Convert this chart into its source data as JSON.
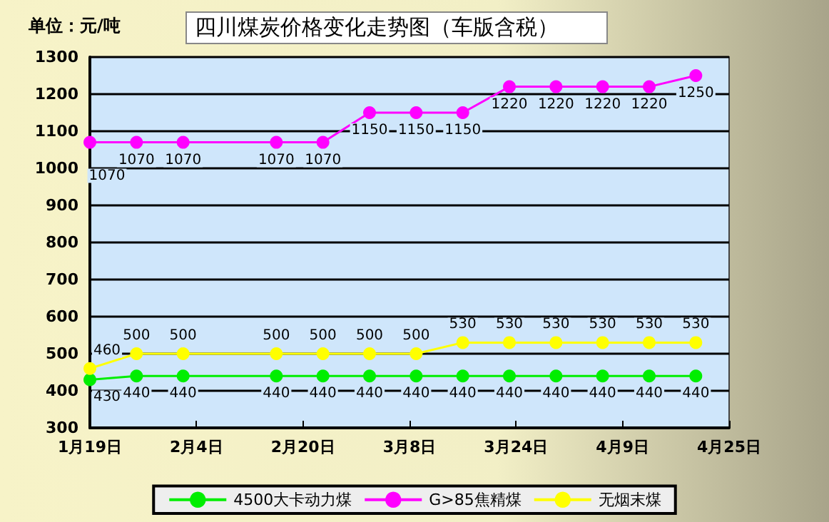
{
  "chart_data": {
    "type": "line",
    "title": "四川煤炭价格变化走势图（车版含税）",
    "ylabel": "单位：元/吨",
    "x": [
      "--01-19",
      "--01-26",
      "--02-02",
      "--02-16",
      "--02-23",
      "--03-02",
      "--03-09",
      "--03-16",
      "--03-23",
      "--03-30",
      "--04-06",
      "--04-13",
      "--04-20"
    ],
    "series": [
      {
        "name": "4500大卡动力煤",
        "color": "#00ee00",
        "values": [
          430,
          440,
          440,
          440,
          440,
          440,
          440,
          440,
          440,
          440,
          440,
          440,
          440
        ]
      },
      {
        "name": "G>85焦精煤",
        "color": "#ff00ff",
        "values": [
          1070,
          1070,
          1070,
          1070,
          1070,
          1150,
          1150,
          1150,
          1220,
          1220,
          1220,
          1220,
          1250
        ]
      },
      {
        "name": "无烟末煤",
        "color": "#ffff00",
        "values": [
          460,
          500,
          500,
          500,
          500,
          500,
          500,
          530,
          530,
          530,
          530,
          530,
          530
        ]
      }
    ],
    "xlim": [
      "--01-19",
      "--04-25"
    ],
    "xticks": [
      {
        "value": "--01-19",
        "label": "1月19日"
      },
      {
        "value": "--02-04",
        "label": "2月4日"
      },
      {
        "value": "--02-20",
        "label": "2月20日"
      },
      {
        "value": "--03-08",
        "label": "3月8日"
      },
      {
        "value": "--03-24",
        "label": "3月24日"
      },
      {
        "value": "--04-09",
        "label": "4月9日"
      },
      {
        "value": "--04-25",
        "label": "4月25日"
      }
    ],
    "ylim": [
      300,
      1300
    ],
    "yticks": [
      300,
      400,
      500,
      600,
      700,
      800,
      900,
      1000,
      1100,
      1200,
      1300
    ],
    "grid": "y",
    "legend": "bottom",
    "marker": "circle",
    "line_style": "solid",
    "data_labels": true
  }
}
